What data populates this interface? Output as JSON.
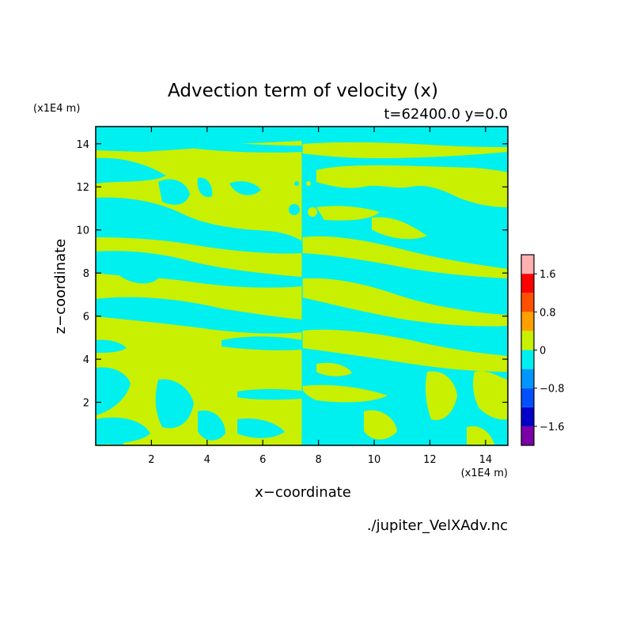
{
  "chart_data": {
    "type": "heatmap",
    "title": "Advection term of velocity (x)",
    "subtitle": "t=62400.0 y=0.0",
    "xlabel": "x−coordinate",
    "ylabel": "z−coordinate",
    "x_unit": "(x1E4 m)",
    "y_unit": "(x1E4 m)",
    "footer": "./jupiter_VelXAdv.nc",
    "xlim": [
      0,
      14.8
    ],
    "ylim": [
      0,
      14.8
    ],
    "x_ticks": [
      2,
      4,
      6,
      8,
      10,
      12,
      14
    ],
    "y_ticks": [
      2,
      4,
      6,
      8,
      10,
      12,
      14
    ],
    "colorbar": {
      "levels": [
        -2.0,
        -1.6,
        -1.2,
        -0.8,
        -0.4,
        0,
        0.4,
        0.8,
        1.2,
        1.6,
        2.0
      ],
      "colors": [
        "#7a00a8",
        "#0000c8",
        "#0050ff",
        "#0096ff",
        "#00f0f0",
        "#c8f000",
        "#ffa000",
        "#ff5000",
        "#ff0000",
        "#ffb0b0"
      ],
      "tick_labels": [
        "−1.6",
        "−0.8",
        "0",
        "0.8",
        "1.6"
      ],
      "tick_values": [
        -1.6,
        -0.8,
        0,
        0.8,
        1.6
      ]
    },
    "field_description_levels": {
      "negative_fill": "#00f0f0",
      "positive_fill": "#c8f000"
    }
  }
}
